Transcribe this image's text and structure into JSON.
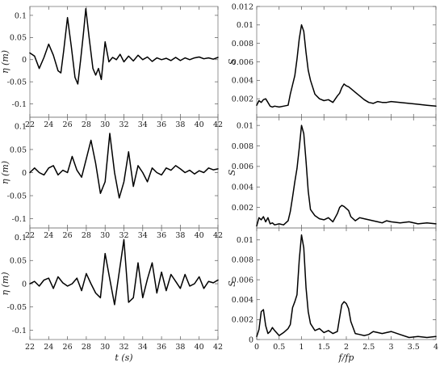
{
  "chart_data": [
    {
      "type": "line",
      "id": "eta-1",
      "xlim": [
        22,
        42
      ],
      "ylim": [
        -0.13,
        0.12
      ],
      "xticks": [
        "22",
        "24",
        "26",
        "28",
        "30",
        "32",
        "34",
        "36",
        "38",
        "40",
        "42"
      ],
      "yticks": [
        "0.1",
        "0.05",
        "0",
        "-0.05",
        "-0.1"
      ],
      "xlabel": "",
      "ylabel": "η (m)",
      "x": [
        22,
        22.5,
        23,
        23.5,
        24,
        24.5,
        25,
        25.3,
        25.6,
        26,
        26.4,
        26.8,
        27.1,
        27.4,
        27.7,
        27.95,
        28.3,
        28.7,
        29,
        29.3,
        29.6,
        30,
        30.4,
        30.8,
        31.2,
        31.6,
        32,
        32.5,
        33,
        33.5,
        34,
        34.5,
        35,
        35.5,
        36,
        36.5,
        37,
        37.5,
        38,
        38.5,
        39,
        39.5,
        40,
        40.5,
        41,
        41.5,
        42
      ],
      "y": [
        0.015,
        0.008,
        -0.02,
        0.005,
        0.035,
        0.01,
        -0.025,
        -0.03,
        0.02,
        0.095,
        0.03,
        -0.04,
        -0.055,
        0.0,
        0.06,
        0.115,
        0.05,
        -0.02,
        -0.035,
        -0.02,
        -0.045,
        0.04,
        -0.005,
        0.005,
        0.0,
        0.012,
        -0.005,
        0.008,
        -0.003,
        0.01,
        0.0,
        0.006,
        -0.004,
        0.004,
        0.0,
        0.003,
        -0.002,
        0.005,
        -0.002,
        0.004,
        0.0,
        0.004,
        0.006,
        0.002,
        0.004,
        0.001,
        0.005
      ]
    },
    {
      "type": "line",
      "id": "eta-2",
      "xlim": [
        22,
        42
      ],
      "ylim": [
        -0.12,
        0.12
      ],
      "xticks": [
        "22",
        "24",
        "26",
        "28",
        "30",
        "32",
        "34",
        "36",
        "38",
        "40",
        "42"
      ],
      "yticks": [
        "0.1",
        "0.05",
        "0",
        "-0.05",
        "-0.1"
      ],
      "xlabel": "",
      "ylabel": "η (m)",
      "x": [
        22,
        22.5,
        23,
        23.5,
        24,
        24.5,
        25,
        25.5,
        26,
        26.5,
        27,
        27.5,
        28,
        28.5,
        29,
        29.5,
        30,
        30.5,
        31,
        31.5,
        32,
        32.5,
        33,
        33.5,
        34,
        34.5,
        35,
        35.5,
        36,
        36.5,
        37,
        37.5,
        38,
        38.5,
        39,
        39.5,
        40,
        40.5,
        41,
        41.5,
        42
      ],
      "y": [
        0.0,
        0.01,
        0.0,
        -0.005,
        0.01,
        0.015,
        -0.005,
        0.005,
        0.0,
        0.035,
        0.005,
        -0.01,
        0.03,
        0.07,
        0.02,
        -0.045,
        -0.02,
        0.085,
        0.0,
        -0.055,
        -0.02,
        0.045,
        -0.03,
        0.015,
        0.0,
        -0.02,
        0.01,
        0.0,
        -0.005,
        0.01,
        0.005,
        0.015,
        0.008,
        0.0,
        0.005,
        -0.003,
        0.004,
        0.0,
        0.01,
        0.006,
        0.008
      ]
    },
    {
      "type": "line",
      "id": "eta-3",
      "xlim": [
        22,
        42
      ],
      "ylim": [
        -0.12,
        0.12
      ],
      "xticks": [
        "22",
        "24",
        "26",
        "28",
        "30",
        "32",
        "34",
        "36",
        "38",
        "40",
        "42"
      ],
      "yticks": [
        "0.1",
        "0.05",
        "0",
        "-0.05",
        "-0.1"
      ],
      "xlabel": "t (s)",
      "ylabel": "η (m)",
      "x": [
        22,
        22.5,
        23,
        23.5,
        24,
        24.5,
        25,
        25.5,
        26,
        26.5,
        27,
        27.5,
        28,
        28.5,
        29,
        29.5,
        30,
        30.5,
        31,
        31.5,
        32,
        32.5,
        33,
        33.5,
        34,
        34.5,
        35,
        35.5,
        36,
        36.5,
        37,
        37.5,
        38,
        38.5,
        39,
        39.5,
        40,
        40.5,
        41,
        41.5,
        42
      ],
      "y": [
        0.0,
        0.005,
        -0.005,
        0.008,
        0.012,
        -0.01,
        0.015,
        0.002,
        -0.005,
        0.0,
        0.012,
        -0.015,
        0.022,
        0.0,
        -0.02,
        -0.03,
        0.065,
        0.01,
        -0.045,
        0.025,
        0.095,
        -0.04,
        -0.03,
        0.045,
        -0.03,
        0.01,
        0.045,
        -0.02,
        0.025,
        -0.015,
        0.02,
        0.005,
        -0.01,
        0.02,
        -0.005,
        0.0,
        0.015,
        -0.01,
        0.005,
        0.002,
        0.008
      ]
    },
    {
      "type": "line",
      "id": "spec-1",
      "xlim": [
        0,
        4
      ],
      "ylim": [
        0,
        0.012
      ],
      "xticks": [],
      "yticks": [
        "0.012",
        "0.01",
        "0.008",
        "0.006",
        "0.004",
        "0.002"
      ],
      "xlabel": "",
      "ylabel": "S",
      "x": [
        0,
        0.05,
        0.1,
        0.15,
        0.2,
        0.25,
        0.3,
        0.35,
        0.4,
        0.5,
        0.6,
        0.7,
        0.75,
        0.8,
        0.85,
        0.9,
        0.95,
        1.0,
        1.05,
        1.1,
        1.15,
        1.2,
        1.3,
        1.4,
        1.5,
        1.6,
        1.7,
        1.8,
        1.85,
        1.9,
        1.95,
        2.0,
        2.05,
        2.1,
        2.2,
        2.3,
        2.4,
        2.5,
        2.6,
        2.7,
        2.8,
        2.9,
        3.0,
        3.2,
        3.4,
        3.6,
        3.8,
        4.0
      ],
      "y": [
        0.0013,
        0.0018,
        0.0016,
        0.0019,
        0.002,
        0.0016,
        0.0012,
        0.0011,
        0.0012,
        0.0011,
        0.0012,
        0.0013,
        0.0025,
        0.0035,
        0.0045,
        0.0063,
        0.0085,
        0.01,
        0.0093,
        0.007,
        0.0051,
        0.004,
        0.0025,
        0.002,
        0.0018,
        0.0019,
        0.0016,
        0.0023,
        0.0026,
        0.0032,
        0.0036,
        0.0034,
        0.0033,
        0.0031,
        0.0027,
        0.0023,
        0.0019,
        0.0016,
        0.0015,
        0.0017,
        0.0016,
        0.0016,
        0.0017,
        0.0016,
        0.0015,
        0.0014,
        0.0013,
        0.0012
      ]
    },
    {
      "type": "line",
      "id": "spec-2",
      "xlim": [
        0,
        4
      ],
      "ylim": [
        0,
        0.0108
      ],
      "xticks": [],
      "yticks": [
        "0.01",
        "0.008",
        "0.006",
        "0.004",
        "0.002"
      ],
      "xlabel": "",
      "ylabel": "S",
      "x": [
        0,
        0.05,
        0.1,
        0.15,
        0.2,
        0.25,
        0.3,
        0.35,
        0.4,
        0.5,
        0.6,
        0.7,
        0.75,
        0.8,
        0.85,
        0.9,
        0.95,
        1.0,
        1.05,
        1.1,
        1.15,
        1.2,
        1.3,
        1.4,
        1.5,
        1.6,
        1.7,
        1.8,
        1.85,
        1.9,
        1.95,
        2.0,
        2.05,
        2.1,
        2.2,
        2.3,
        2.4,
        2.5,
        2.6,
        2.7,
        2.8,
        2.9,
        3.0,
        3.2,
        3.4,
        3.6,
        3.8,
        4.0
      ],
      "y": [
        0.0002,
        0.001,
        0.0008,
        0.0011,
        0.0006,
        0.001,
        0.0004,
        0.0005,
        0.0003,
        0.0004,
        0.0003,
        0.0007,
        0.0016,
        0.003,
        0.0045,
        0.0058,
        0.0078,
        0.01,
        0.0092,
        0.0065,
        0.0036,
        0.0018,
        0.0012,
        0.0009,
        0.0008,
        0.001,
        0.0006,
        0.0014,
        0.002,
        0.0022,
        0.0021,
        0.0019,
        0.0017,
        0.0011,
        0.0007,
        0.001,
        0.0009,
        0.0008,
        0.0007,
        0.0006,
        0.0005,
        0.0007,
        0.0006,
        0.0005,
        0.0006,
        0.0004,
        0.0005,
        0.0004
      ]
    },
    {
      "type": "line",
      "id": "spec-3",
      "xlim": [
        0,
        4
      ],
      "ylim": [
        0,
        0.0112
      ],
      "xticks": [
        "0",
        "0.5",
        "1",
        "1.5",
        "2",
        "2.5",
        "3",
        "3.5",
        "4"
      ],
      "yticks": [
        "0.01",
        "0.008",
        "0.006",
        "0.004",
        "0.002",
        "0"
      ],
      "xlabel": "f/fp",
      "ylabel": "S",
      "x": [
        0,
        0.05,
        0.1,
        0.15,
        0.2,
        0.25,
        0.3,
        0.35,
        0.4,
        0.5,
        0.6,
        0.7,
        0.75,
        0.8,
        0.85,
        0.9,
        0.95,
        1.0,
        1.05,
        1.1,
        1.15,
        1.2,
        1.3,
        1.4,
        1.5,
        1.6,
        1.7,
        1.8,
        1.85,
        1.9,
        1.95,
        2.0,
        2.05,
        2.1,
        2.2,
        2.3,
        2.4,
        2.5,
        2.6,
        2.7,
        2.8,
        2.9,
        3.0,
        3.2,
        3.4,
        3.6,
        3.8,
        4.0
      ],
      "y": [
        0.0003,
        0.001,
        0.0028,
        0.003,
        0.0014,
        0.0006,
        0.0008,
        0.0012,
        0.0009,
        0.0004,
        0.0007,
        0.0011,
        0.0015,
        0.0032,
        0.0038,
        0.0045,
        0.008,
        0.0105,
        0.0092,
        0.0052,
        0.0028,
        0.0016,
        0.0009,
        0.0011,
        0.0007,
        0.0009,
        0.0006,
        0.0008,
        0.0022,
        0.0035,
        0.0038,
        0.0036,
        0.0031,
        0.0018,
        0.0006,
        0.0005,
        0.0004,
        0.0005,
        0.0008,
        0.0007,
        0.0006,
        0.0007,
        0.0008,
        0.0005,
        0.0002,
        0.0003,
        0.0002,
        0.0003
      ]
    }
  ]
}
